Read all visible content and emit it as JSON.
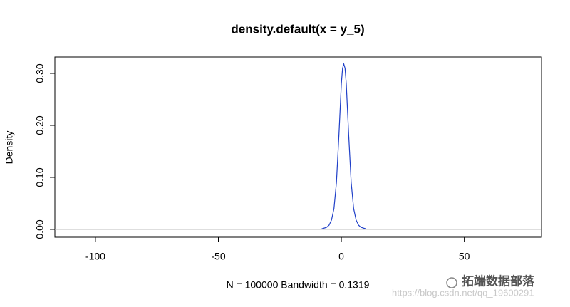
{
  "chart_data": {
    "type": "line",
    "title": "density.default(x = y_5)",
    "x_label": "N = 100000   Bandwidth = 0.1319",
    "y_label": "Density",
    "x": [
      -8,
      -6,
      -5,
      -4,
      -3,
      -2,
      -1,
      0,
      0.5,
      1,
      1.5,
      2,
      3,
      4,
      5,
      6,
      7,
      8,
      10
    ],
    "series": [
      {
        "name": "density",
        "color": "#2040c8",
        "values": [
          0.001,
          0.004,
          0.008,
          0.018,
          0.04,
          0.09,
          0.18,
          0.28,
          0.31,
          0.318,
          0.31,
          0.28,
          0.18,
          0.09,
          0.04,
          0.018,
          0.008,
          0.004,
          0.001
        ]
      }
    ],
    "xlim": [
      -116.5,
      81.4
    ],
    "xticks": [
      -100,
      -50,
      0,
      50
    ],
    "ylim": [
      -0.0151,
      0.3315
    ],
    "yticks": [
      {
        "value": 0,
        "label": "0.00"
      },
      {
        "value": 0.1,
        "label": "0.10"
      },
      {
        "value": 0.2,
        "label": "0.20"
      },
      {
        "value": 0.3,
        "label": "0.30"
      }
    ],
    "hline": {
      "value": 0,
      "color": "#bebebe"
    }
  },
  "watermark": {
    "brand": "拓端数据部落",
    "url": "https://blog.csdn.net/qq_19600291"
  }
}
